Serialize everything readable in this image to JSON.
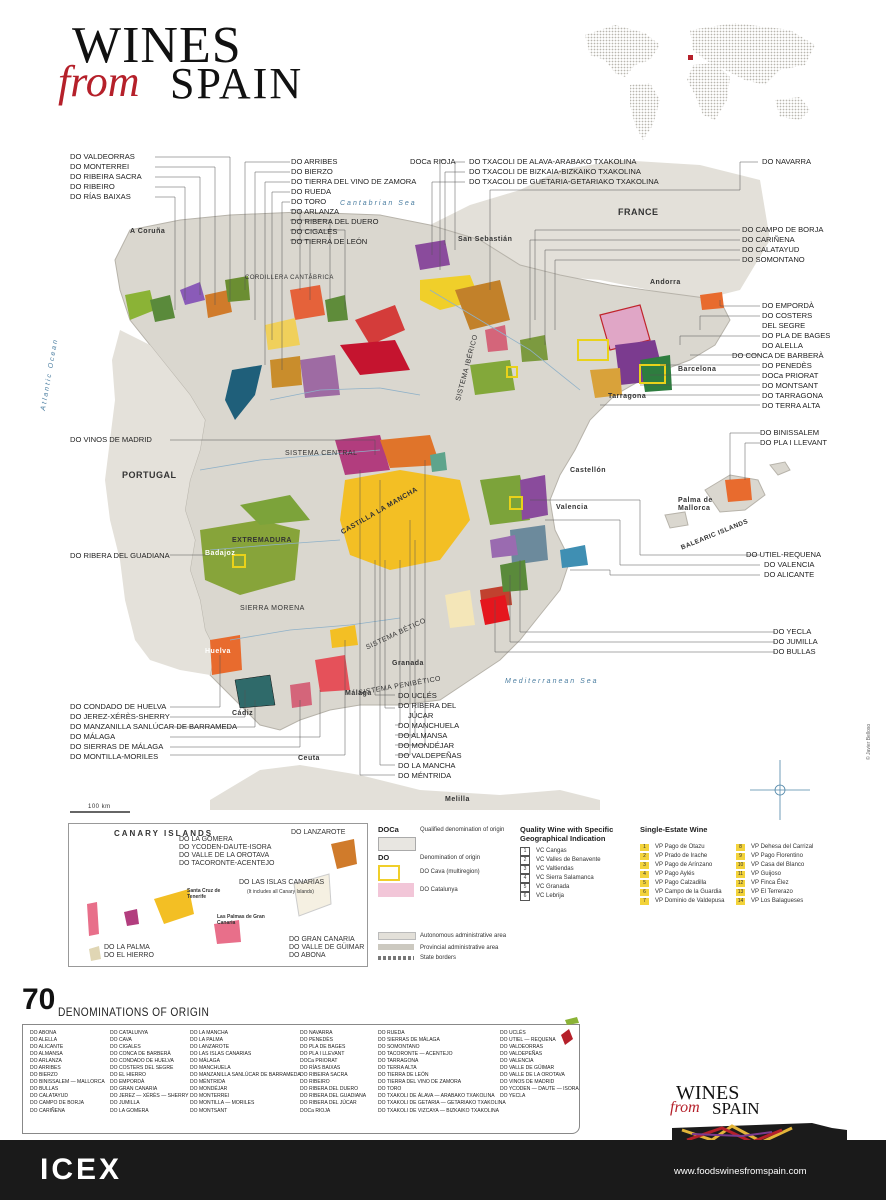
{
  "title": {
    "line1": "WINES",
    "from": "from",
    "spain": "SPAIN"
  },
  "colors": {
    "land": "#dad7cf",
    "sea": "#ffffff",
    "doca": "#b02a30",
    "accent_yellow": "#f3d33a"
  },
  "labels_left": [
    "DO VALDEORRAS",
    "DO MONTERREI",
    "DO RIBEIRA SACRA",
    "DO RIBEIRO",
    "DO RÍAS BAIXAS"
  ],
  "labels_top_mid": [
    "DO ARRIBES",
    "DO BIERZO",
    "DO TIERRA DEL VINO DE ZAMORA",
    "DO RUEDA",
    "DO TORO",
    "DO ARLANZA",
    "DO RIBERA DEL DUERO",
    "DO CIGALES",
    "DO TIERRA DE LEÓN"
  ],
  "labels_top_right": [
    "DO TXACOLI DE ALAVA-ARABAKO TXAKOLINA",
    "DO TXACOLI DE BIZKAIA-BIZKAIKO TXAKOLINA",
    "DO TXACOLI DE GUETARIA-GETARIAKO TXAKOLINA"
  ],
  "label_rioja": "DOCa RIOJA",
  "label_navarra": "DO NAVARRA",
  "labels_right_1": [
    "DO CAMPO DE BORJA",
    "DO CARIÑENA",
    "DO CALATAYUD",
    "DO SOMONTANO"
  ],
  "labels_right_2": [
    "DO EMPORDÀ",
    "DO COSTERS",
    "DEL SEGRE",
    "DO PLA DE BAGES",
    "DO ALELLA",
    "DO CONCA DE BARBERÀ",
    "DO PENEDÈS",
    "DOCa PRIORAT",
    "DO MONTSANT",
    "DO TARRAGONA",
    "DO TERRA ALTA"
  ],
  "labels_right_3": [
    "DO BINISSALEM",
    "DO PLA I LLEVANT"
  ],
  "labels_right_4": [
    "DO UTIEL-REQUENA",
    "DO VALENCIA",
    "DO ALICANTE"
  ],
  "labels_right_5": [
    "DO YECLA",
    "DO JUMILLA",
    "DO BULLAS"
  ],
  "label_madrid": "DO VINOS DE MADRID",
  "label_guadiana": "DO RIBERA DEL GUADIANA",
  "labels_bottom_left": [
    "DO CONDADO DE HUELVA",
    "DO JEREZ-XÉRÈS-SHERRY",
    "DO MANZANILLA SANLÚCAR DE BARRAMEDA",
    "DO MÁLAGA",
    "DO SIERRAS DE MÁLAGA",
    "DO MONTILLA-MORILES"
  ],
  "labels_bottom_mid": [
    "DO UCLÉS",
    "DO RIBERA DEL",
    "JÚCAR",
    "DO MANCHUELA",
    "DO ALMANSA",
    "DO MONDÉJAR",
    "DO VALDEPEÑAS",
    "DO LA MANCHA",
    "DO MÉNTRIDA"
  ],
  "places": {
    "france": "FRANCE",
    "portugal": "PORTUGAL",
    "atlantic": "Atlantic Ocean",
    "cantabrian": "Cantabrian Sea",
    "mediterranean": "Mediterranean Sea",
    "balearic": "BALEARIC ISLANDS",
    "coruna": "A Coruña",
    "san_sebastian": "San Sebastián",
    "andorra": "Andorra",
    "barcelona": "Barcelona",
    "tarragona": "Tarragona",
    "castellon": "Castellón",
    "valencia": "Valencia",
    "palma": "Palma de Mallorca",
    "granada": "Granada",
    "malaga": "Málaga",
    "cadiz": "Cádiz",
    "huelva": "Huelva",
    "ceuta": "Ceuta",
    "melilla": "Melilla",
    "badajoz": "Badajoz",
    "extremadura": "EXTREMADURA",
    "castilla_mancha": "CASTILLA LA MANCHA",
    "sistema_central": "SISTEMA CENTRAL",
    "sierra_morena": "SIERRA MORENA",
    "sistema_iberico": "SISTEMA IBÉRICO",
    "sistema_betico": "SISTEMA BÉTICO",
    "sistema_penibetico": "SISTEMA PENIBÉTICO",
    "cordillera": "CORDILLERA CANTÁBRICA",
    "scale": "100 km",
    "credit": "© Javier Belloso"
  },
  "canary": {
    "title": "CANARY ISLANDS",
    "labels": [
      "DO LA GOMERA",
      "DO YCODEN-DAUTE-ISORA",
      "DO VALLE DE LA OROTAVA",
      "DO TACORONTE-ACENTEJO",
      "DO LAS ISLAS CANARIAS",
      "(It includes all Canary Islands)",
      "DO LANZAROTE",
      "DO GRAN CANARIA",
      "DO VALLE DE GÜIMAR",
      "DO ABONA",
      "DO LA PALMA",
      "DO EL HIERRO",
      "Santa Cruz de Tenerife",
      "Las Palmas de Gran Canaria"
    ]
  },
  "legend": {
    "doca_label": "DOCa",
    "doca_text": "Qualified denomination of origin",
    "do_label": "DO",
    "do_text": "Denomination of origin",
    "cava_text": "DO Cava (multiregion)",
    "catalunya_text": "DO Catalunya",
    "auto_area": "Autonomous administrative area",
    "prov_area": "Provincial administrative area",
    "state": "State borders",
    "vc_title_1": "Quality Wine with Specific",
    "vc_title_2": "Geographical Indication",
    "vc": [
      "VC Cangas",
      "VC Valles de Benavente",
      "VC Valtiendas",
      "VC Sierra Salamanca",
      "VC Granada",
      "VC Lebrija"
    ],
    "vp_title": "Single-Estate Wine",
    "vp": [
      "VP Pago de Otazu",
      "VP Prado de Irache",
      "VP Pago de Arínzano",
      "VP Pago Aylés",
      "VP Pago Calzadilla",
      "VP Campo de la Guardia",
      "VP Dominio de Valdepusa",
      "VP Dehesa del Carrizal",
      "VP Pago Florentino",
      "VP Casa del Blanco",
      "VP Guijoso",
      "VP Finca Élez",
      "VP El Terrerazo",
      "VP Los Balagueses"
    ]
  },
  "denominations": {
    "count": "70",
    "title": "DENOMINATIONS OF ORIGIN",
    "col1": [
      "DO ABONA",
      "DO ALELLA",
      "DO ALICANTE",
      "DO ALMANSA",
      "DO ARLANZA",
      "DO ARRIBES",
      "DO BIERZO",
      "DO BINISSALEM — MALLORCA",
      "DO BULLAS",
      "DO CALATAYUD",
      "DO CAMPO DE BORJA",
      "DO CARIÑENA"
    ],
    "col2": [
      "DO CATALUNYA",
      "DO CAVA",
      "DO CIGALES",
      "DO CONCA DE BARBERÀ",
      "DO CONDADO DE HUELVA",
      "DO COSTERS DEL SEGRE",
      "DO EL HIERRO",
      "DO EMPORDÀ",
      "DO GRAN CANARIA",
      "DO JEREZ — XÉRÈS — SHERRY",
      "DO JUMILLA",
      "DO LA GOMERA"
    ],
    "col3": [
      "DO LA MANCHA",
      "DO LA PALMA",
      "DO LANZAROTE",
      "DO LAS ISLAS CANARIAS",
      "DO MÁLAGA",
      "DO MANCHUELA",
      "DO MANZANILLA SANLÚCAR DE BARRAMEDA",
      "DO MÉNTRIDA",
      "DO MONDÉJAR",
      "DO MONTERREI",
      "DO MONTILLA — MORILES",
      "DO MONTSANT"
    ],
    "col4": [
      "DO NAVARRA",
      "DO PENEDÈS",
      "DO PLA DE BAGES",
      "DO PLA I LLEVANT",
      "DOCa PRIORAT",
      "DO RÍAS BAIXAS",
      "DO RIBEIRA SACRA",
      "DO RIBEIRO",
      "DO RIBERA DEL DUERO",
      "DO RIBERA DEL GUADIANA",
      "DO RIBERA DEL JÚCAR",
      "DOCa RIOJA"
    ],
    "col5": [
      "DO RUEDA",
      "DO SIERRAS DE MÁLAGA",
      "DO SOMONTANO",
      "DO TACORONTE — ACENTEJO",
      "DO TARRAGONA",
      "DO TERRA ALTA",
      "DO TIERRA DE LEÓN",
      "DO TIERRA DEL VINO DE ZAMORA",
      "DO TORO",
      "DO TXAKOLI DE ÁLAVA — ARABAKO TXAKOLINA",
      "DO TXAKOLI DE GETARIA — GETARIAKO TXAKOLINA",
      "DO TXAKOLI DE VIZCAYA — BIZKAIKO TXAKOLINA"
    ],
    "col6": [
      "DO UCLÉS",
      "DO UTIEL — REQUENA",
      "DO VALDEORRAS",
      "DO VALDEPEÑAS",
      "DO VALENCIA",
      "DO VALLE DE GÜIMAR",
      "DO VALLE DE LA OROTAVA",
      "DO VINOS DE MADRID",
      "DO YCODEN — DAUTE — ISORA",
      "DO YECLA"
    ]
  },
  "footer": {
    "org": "ICEX",
    "website": "www.foodswinesfromspain.com",
    "logo_wines": "WINES",
    "logo_from": "from",
    "logo_spain": "SPAIN"
  }
}
